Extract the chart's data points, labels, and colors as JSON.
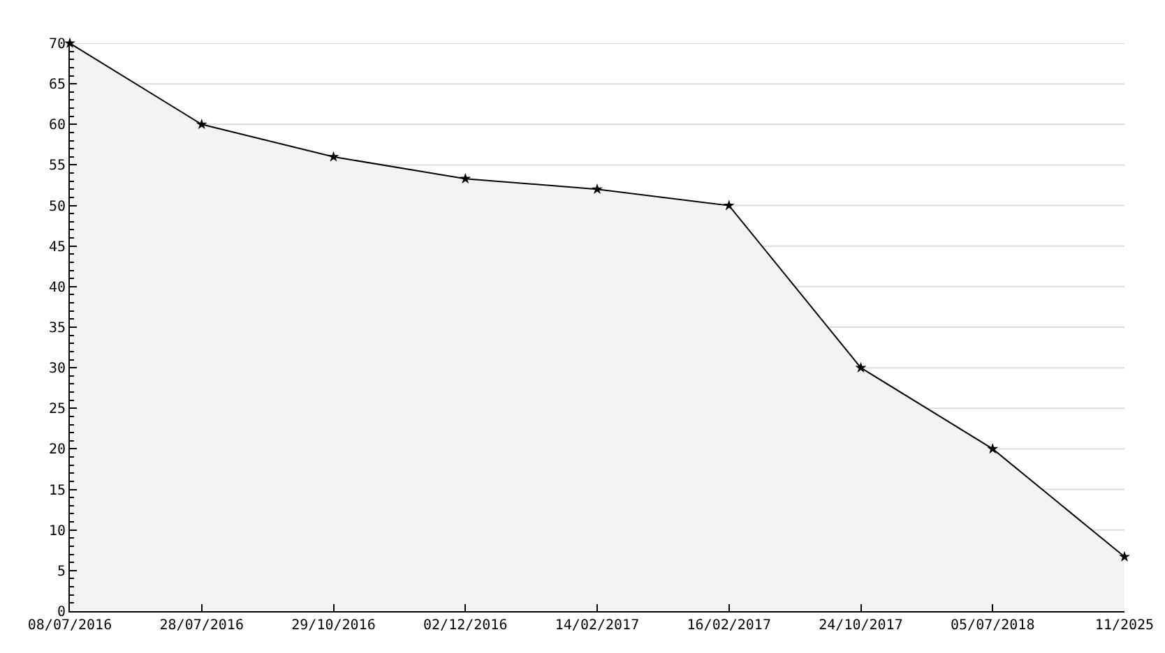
{
  "chart_data": {
    "type": "area",
    "categories": [
      "08/07/2016",
      "28/07/2016",
      "29/10/2016",
      "02/12/2016",
      "14/02/2017",
      "16/02/2017",
      "24/10/2017",
      "05/07/2018",
      "11/2025"
    ],
    "values": [
      70,
      60,
      56,
      53.3,
      52,
      50,
      30,
      20,
      6.7
    ],
    "color": "#f2f2f2",
    "ylim": [
      0,
      70
    ],
    "yticks": [
      0,
      {
        "value": 1,
        "label": null
      },
      {
        "value": 2,
        "label": null
      },
      {
        "value": 3,
        "label": null
      },
      {
        "value": 4,
        "label": null
      },
      5,
      {
        "value": 6,
        "label": null
      },
      {
        "value": 7,
        "label": null
      },
      {
        "value": 8,
        "label": null
      },
      {
        "value": 9,
        "label": null
      },
      10,
      {
        "value": 11,
        "label": null
      },
      {
        "value": 12,
        "label": null
      },
      {
        "value": 13,
        "label": null
      },
      {
        "value": 14,
        "label": null
      },
      15,
      {
        "value": 16,
        "label": null
      },
      {
        "value": 17,
        "label": null
      },
      {
        "value": 18,
        "label": null
      },
      {
        "value": 19,
        "label": null
      },
      20,
      {
        "value": 21,
        "label": null
      },
      {
        "value": 22,
        "label": null
      },
      {
        "value": 23,
        "label": null
      },
      {
        "value": 24,
        "label": null
      },
      25,
      {
        "value": 26,
        "label": null
      },
      {
        "value": 27,
        "label": null
      },
      {
        "value": 28,
        "label": null
      },
      {
        "value": 29,
        "label": null
      },
      30,
      {
        "value": 31,
        "label": null
      },
      {
        "value": 32,
        "label": null
      },
      {
        "value": 33,
        "label": null
      },
      {
        "value": 34,
        "label": null
      },
      35,
      {
        "value": 36,
        "label": null
      },
      {
        "value": 37,
        "label": null
      },
      {
        "value": 38,
        "label": null
      },
      {
        "value": 39,
        "label": null
      },
      40,
      {
        "value": 41,
        "label": null
      },
      {
        "value": 42,
        "label": null
      },
      {
        "value": 43,
        "label": null
      },
      {
        "value": 44,
        "label": null
      },
      45,
      {
        "value": 46,
        "label": null
      },
      {
        "value": 47,
        "label": null
      },
      {
        "value": 48,
        "label": null
      },
      {
        "value": 49,
        "label": null
      },
      50,
      {
        "value": 51,
        "label": null
      },
      {
        "value": 52,
        "label": null
      },
      {
        "value": 53,
        "label": null
      },
      {
        "value": 54,
        "label": null
      },
      55,
      {
        "value": 56,
        "label": null
      },
      {
        "value": 57,
        "label": null
      },
      {
        "value": 58,
        "label": null
      },
      {
        "value": 59,
        "label": null
      },
      60,
      {
        "value": 61,
        "label": null
      },
      {
        "value": 62,
        "label": null
      },
      {
        "value": 63,
        "label": null
      },
      {
        "value": 64,
        "label": null
      },
      65,
      {
        "value": 66,
        "label": null
      },
      {
        "value": 67,
        "label": null
      },
      {
        "value": 68,
        "label": null
      },
      {
        "value": 69,
        "label": null
      },
      70
    ],
    "grid": "y",
    "marker": "star",
    "line_style": "solid"
  }
}
